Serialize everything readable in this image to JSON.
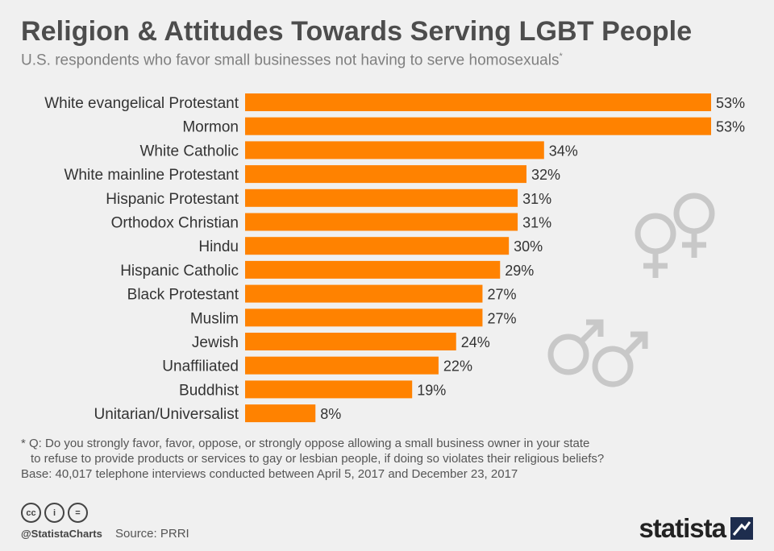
{
  "header": {
    "title": "Religion & Attitudes Towards Serving LGBT People",
    "subtitle": "U.S. respondents who favor small businesses not having to serve homosexuals",
    "subtitle_mark": "*"
  },
  "chart_data": {
    "type": "bar",
    "orientation": "horizontal",
    "categories": [
      "White evangelical Protestant",
      "Mormon",
      "White Catholic",
      "White mainline Protestant",
      "Hispanic Protestant",
      "Orthodox Christian",
      "Hindu",
      "Hispanic Catholic",
      "Black Protestant",
      "Muslim",
      "Jewish",
      "Unaffiliated",
      "Buddhist",
      "Unitarian/Universalist"
    ],
    "values": [
      53,
      53,
      34,
      32,
      31,
      31,
      30,
      29,
      27,
      27,
      24,
      22,
      19,
      8
    ],
    "value_labels": [
      "53%",
      "53%",
      "34%",
      "32%",
      "31%",
      "31%",
      "30%",
      "29%",
      "27%",
      "27%",
      "24%",
      "22%",
      "19%",
      "8%"
    ],
    "unit": "%",
    "xlim": [
      0,
      53
    ],
    "bar_color": "#ff8200",
    "grid": false
  },
  "footnote": {
    "line1": "* Q: Do you strongly favor, favor, oppose, or strongly oppose allowing a small business owner in your state",
    "line2": "to refuse to provide products or services to gay or lesbian people, if doing so violates their religious beliefs?",
    "line3": "Base: 40,017 telephone interviews conducted between April 5, 2017 and December 23, 2017"
  },
  "footer": {
    "handle": "@StatistaCharts",
    "source": "Source: PRRI",
    "logo": "statista",
    "license_icons": [
      "cc",
      "by",
      "nd"
    ],
    "license_labels": [
      "cc",
      "i",
      "="
    ]
  },
  "decor": {
    "icons": [
      "female-symbol-icon",
      "male-symbol-icon"
    ],
    "icon_color": "#c8c8c8"
  }
}
